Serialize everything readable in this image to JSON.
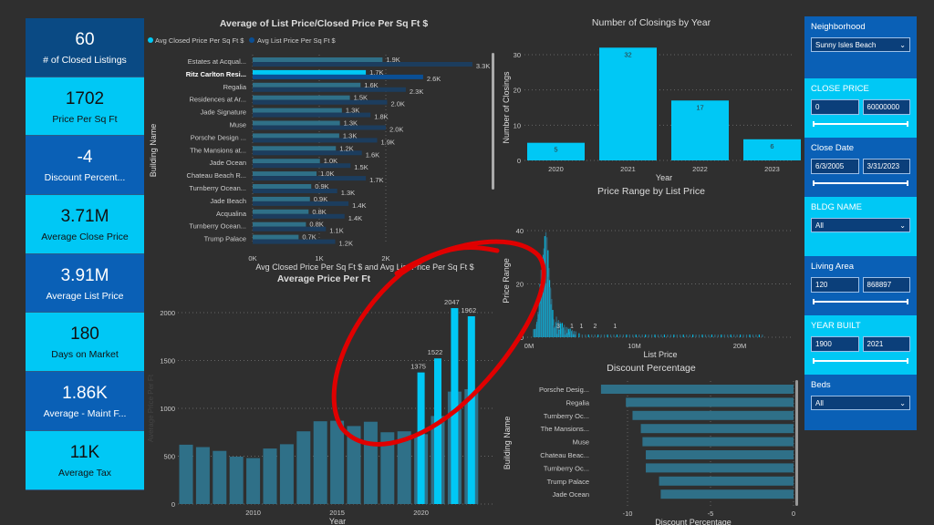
{
  "kpis": [
    {
      "value": "60",
      "label": "# of Closed Listings",
      "style": "first"
    },
    {
      "value": "1702",
      "label": "Price Per Sq Ft",
      "style": "light"
    },
    {
      "value": "-4",
      "label": "Discount Percent...",
      "style": "dark"
    },
    {
      "value": "3.71M",
      "label": "Average Close Price",
      "style": "light"
    },
    {
      "value": "3.91M",
      "label": "Average List Price",
      "style": "dark"
    },
    {
      "value": "180",
      "label": "Days on Market",
      "style": "light"
    },
    {
      "value": "1.86K",
      "label": "Average - Maint F...",
      "style": "dark"
    },
    {
      "value": "11K",
      "label": "Average Tax",
      "style": "light"
    }
  ],
  "slicers": {
    "neighborhood": {
      "label": "Neighborhood",
      "value": "Sunny Isles Beach"
    },
    "close_price": {
      "label": "CLOSE PRICE",
      "min": "0",
      "max": "60000000"
    },
    "close_date": {
      "label": "Close Date",
      "min": "6/3/2005",
      "max": "3/31/2023"
    },
    "bldg_name": {
      "label": "BLDG NAME",
      "value": "All"
    },
    "living_area": {
      "label": "Living Area",
      "min": "120",
      "max": "868897"
    },
    "year_built": {
      "label": "YEAR BUILT",
      "min": "1900",
      "max": "2021"
    },
    "beds": {
      "label": "Beds",
      "value": "All"
    }
  },
  "chart_data": [
    {
      "type": "bar",
      "orientation": "horizontal",
      "title": "Average of List Price/Closed Price Per Sq Ft $",
      "legend": [
        "Avg Closed Price Per Sq Ft $",
        "Avg List Price Per Sq Ft $"
      ],
      "legend_position": "top-left",
      "ylabel": "Building Name",
      "xlabel": "Avg Closed Price Per Sq Ft $ and Avg List Price Per Sq Ft $",
      "xticks": [
        "0K",
        "1K",
        "2K"
      ],
      "xlim": [
        0,
        3400
      ],
      "highlighted": "Ritz Carlton Resi...",
      "categories": [
        "Estates at Acqual...",
        "Ritz Carlton Resi...",
        "Regalia",
        "Residences at Ar...",
        "Jade Signature",
        "Muse",
        "Porsche Design ...",
        "The Mansions at...",
        "Jade Ocean",
        "Chateau Beach R...",
        "Turnberry Ocean...",
        "Jade Beach",
        "Acqualina",
        "Turnberry Ocean...",
        "Trump Palace"
      ],
      "series": [
        {
          "name": "Avg Closed Price Per Sq Ft $",
          "values": [
            1950,
            1700,
            1620,
            1460,
            1340,
            1310,
            1300,
            1250,
            1010,
            960,
            880,
            860,
            840,
            800,
            690
          ],
          "labels": [
            "1.9K",
            "1.7K",
            "1.6K",
            "1.5K",
            "1.3K",
            "1.3K",
            "1.3K",
            "1.2K",
            "1.0K",
            "1.0K",
            "0.9K",
            "0.9K",
            "0.8K",
            "0.8K",
            "0.7K"
          ]
        },
        {
          "name": "Avg List Price Per Sq Ft $",
          "values": [
            3300,
            2560,
            2300,
            2020,
            1770,
            2000,
            1870,
            1640,
            1470,
            1700,
            1270,
            1440,
            1380,
            1100,
            1240
          ],
          "labels": [
            "3.3K",
            "2.6K",
            "2.3K",
            "2.0K",
            "1.8K",
            "2.0K",
            "1.9K",
            "1.6K",
            "1.5K",
            "1.7K",
            "1.3K",
            "1.4K",
            "1.4K",
            "1.1K",
            "1.2K"
          ]
        }
      ]
    },
    {
      "type": "bar",
      "title": "Average Price Per Ft",
      "xlabel": "Year",
      "ylabel": "Average Price Per Ft",
      "ylim": [
        0,
        2100
      ],
      "yticks": [
        0,
        500,
        1000,
        1500,
        2000
      ],
      "xticks": [
        2010,
        2015,
        2020
      ],
      "x": [
        2006,
        2007,
        2008,
        2009,
        2010,
        2011,
        2012,
        2013,
        2014,
        2015,
        2016,
        2017,
        2018,
        2019,
        2020,
        2021,
        2022,
        2023
      ],
      "series": [
        {
          "name": "all",
          "values": [
            620,
            595,
            555,
            495,
            480,
            580,
            625,
            760,
            865,
            870,
            815,
            860,
            750,
            760,
            730,
            920,
            1175,
            1200
          ]
        },
        {
          "name": "highlighted",
          "x": [
            2020,
            2021,
            2022,
            2023
          ],
          "values": [
            1375,
            1522,
            2047,
            1962
          ],
          "labels": [
            "1375",
            "1522",
            "2047",
            "1962"
          ]
        }
      ]
    },
    {
      "type": "bar",
      "title": "Number of Closings by Year",
      "xlabel": "Year",
      "ylabel": "Number of Closings",
      "ylim": [
        0,
        33
      ],
      "yticks": [
        0,
        10,
        20,
        30
      ],
      "categories": [
        "2020",
        "2021",
        "2022",
        "2023"
      ],
      "values": [
        5,
        32,
        17,
        6
      ],
      "labels": [
        "5",
        "32",
        "17",
        "6"
      ]
    },
    {
      "type": "bar",
      "title": "Price Range by List Price",
      "xlabel": "List Price",
      "ylabel": "Price Range",
      "ylim": [
        0,
        45
      ],
      "yticks": [
        0,
        20,
        40
      ],
      "xticks": [
        "0M",
        "10M",
        "20M"
      ],
      "xlim": [
        0,
        26
      ],
      "annotations": [
        "3",
        "1",
        "1",
        "2",
        "1"
      ]
    },
    {
      "type": "bar",
      "orientation": "horizontal",
      "title": "Discount Percentage",
      "xlabel": "Discount Percentage",
      "ylabel": "Building Name",
      "xlim": [
        -12,
        0
      ],
      "xticks": [
        "-10",
        "-5",
        "0"
      ],
      "categories": [
        "Porsche Desig...",
        "Regalia",
        "Turnberry Oc...",
        "The Mansions...",
        "Muse",
        "Chateau Beac...",
        "Turnberry Oc...",
        "Trump Palace",
        "Jade Ocean"
      ],
      "values": [
        -11.6,
        -10.1,
        -9.7,
        -9.2,
        -9.1,
        -8.9,
        -8.9,
        -8.1,
        -8.0
      ]
    }
  ],
  "colors": {
    "bright": "#00c8f5",
    "dim": "#2f7088",
    "list": "#1c3d5e",
    "list_hl": "#0a4f95",
    "annotation": "#e00000"
  }
}
